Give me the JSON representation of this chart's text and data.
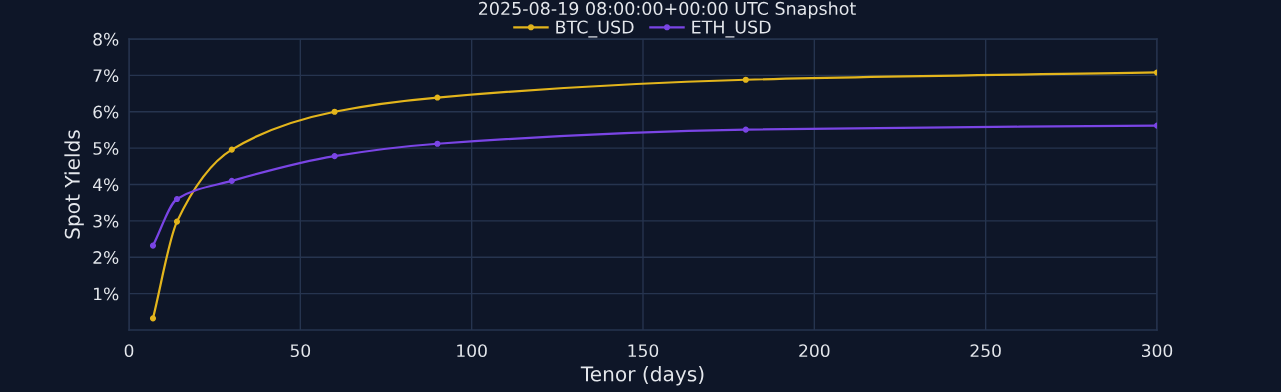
{
  "chart_data": {
    "type": "line",
    "title": "2025-08-19 08:00:00+00:00 UTC Snapshot",
    "xlabel": "Tenor (days)",
    "ylabel": "Spot Yields",
    "x": [
      7,
      14,
      30,
      60,
      90,
      180,
      300
    ],
    "series": [
      {
        "name": "BTC_USD",
        "color": "#e3b51c",
        "values": [
          0.32,
          2.98,
          4.96,
          6.0,
          6.39,
          6.88,
          7.08
        ]
      },
      {
        "name": "ETH_USD",
        "color": "#7a45e5",
        "values": [
          2.32,
          3.6,
          4.1,
          4.78,
          5.12,
          5.51,
          5.62
        ]
      }
    ],
    "xlim": [
      0,
      300
    ],
    "xticks": [
      0,
      50,
      100,
      150,
      200,
      250,
      300
    ],
    "ylim": [
      0,
      8
    ],
    "yticks": [
      {
        "value": 1,
        "label": "1%"
      },
      {
        "value": 2,
        "label": "2%"
      },
      {
        "value": 3,
        "label": "3%"
      },
      {
        "value": 4,
        "label": "4%"
      },
      {
        "value": 5,
        "label": "5%"
      },
      {
        "value": 6,
        "label": "6%"
      },
      {
        "value": 7,
        "label": "7%"
      },
      {
        "value": 8,
        "label": "8%"
      }
    ],
    "grid": true,
    "legend": "top",
    "marker": "circle",
    "line_style": "solid"
  }
}
